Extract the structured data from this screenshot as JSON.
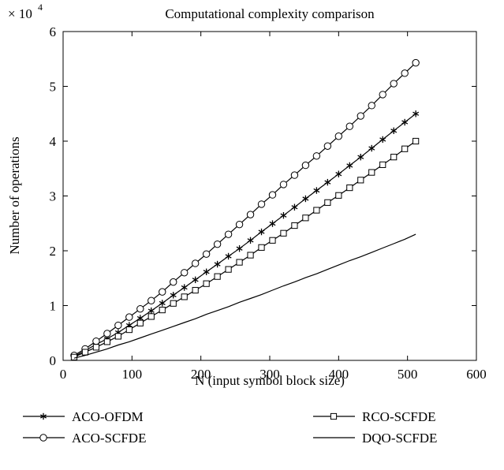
{
  "chart_data": {
    "type": "line",
    "title": "Computational complexity comparison",
    "xlabel": "N (input symbol block size)",
    "ylabel": "Number of operations",
    "y_multiplier": {
      "base": "× 10",
      "exponent": "4"
    },
    "xlim": [
      0,
      600
    ],
    "ylim": [
      0,
      60000
    ],
    "x_ticks": [
      0,
      100,
      200,
      300,
      400,
      500,
      600
    ],
    "y_ticks": [
      0,
      10000,
      20000,
      30000,
      40000,
      50000,
      60000
    ],
    "y_tick_labels": [
      "0",
      "1",
      "2",
      "3",
      "4",
      "5",
      "6"
    ],
    "x_tick_labels": [
      "0",
      "100",
      "200",
      "300",
      "400",
      "500",
      "600"
    ],
    "grid": false,
    "legend_placement": "bottom",
    "series": [
      {
        "name": "ACO-OFDM",
        "marker": "asterisk",
        "x": [
          16,
          32,
          48,
          64,
          80,
          96,
          112,
          128,
          144,
          160,
          176,
          192,
          208,
          224,
          240,
          256,
          272,
          288,
          304,
          320,
          336,
          352,
          368,
          384,
          400,
          416,
          432,
          448,
          464,
          480,
          496,
          512
        ],
        "y": [
          700,
          1800,
          2900,
          3950,
          5100,
          6400,
          7700,
          9050,
          10450,
          11900,
          13300,
          14700,
          16150,
          17550,
          19000,
          20400,
          21900,
          23450,
          24950,
          26450,
          27950,
          29500,
          31000,
          32500,
          34000,
          35550,
          37100,
          38700,
          40300,
          41900,
          43450,
          45000
        ]
      },
      {
        "name": "ACO-SCFDE",
        "marker": "circle",
        "x": [
          16,
          32,
          48,
          64,
          80,
          96,
          112,
          128,
          144,
          160,
          176,
          192,
          208,
          224,
          240,
          256,
          272,
          288,
          304,
          320,
          336,
          352,
          368,
          384,
          400,
          416,
          432,
          448,
          464,
          480,
          496,
          512
        ],
        "y": [
          900,
          2100,
          3500,
          4900,
          6400,
          7900,
          9400,
          10900,
          12500,
          14300,
          16000,
          17700,
          19400,
          21200,
          23000,
          24800,
          26600,
          28500,
          30200,
          32100,
          33800,
          35600,
          37300,
          39100,
          40900,
          42700,
          44600,
          46500,
          48500,
          50500,
          52400,
          54300
        ]
      },
      {
        "name": "RCO-SCFDE",
        "marker": "square",
        "x": [
          16,
          32,
          48,
          64,
          80,
          96,
          112,
          128,
          144,
          160,
          176,
          192,
          208,
          224,
          240,
          256,
          272,
          288,
          304,
          320,
          336,
          352,
          368,
          384,
          400,
          416,
          432,
          448,
          464,
          480,
          496,
          512
        ],
        "y": [
          600,
          1500,
          2400,
          3400,
          4400,
          5600,
          6800,
          8000,
          9200,
          10400,
          11600,
          12800,
          14000,
          15300,
          16600,
          17900,
          19200,
          20600,
          21900,
          23200,
          24600,
          26000,
          27400,
          28800,
          30100,
          31500,
          32900,
          34300,
          35700,
          37100,
          38600,
          40000
        ]
      },
      {
        "name": "DQO-SCFDE",
        "marker": "none",
        "x": [
          16,
          32,
          48,
          64,
          80,
          96,
          112,
          128,
          144,
          160,
          176,
          192,
          208,
          224,
          240,
          256,
          272,
          288,
          304,
          320,
          336,
          352,
          368,
          384,
          400,
          416,
          432,
          448,
          464,
          480,
          496,
          512
        ],
        "y": [
          400,
          900,
          1500,
          2100,
          2800,
          3400,
          4100,
          4800,
          5500,
          6200,
          6900,
          7600,
          8400,
          9100,
          9800,
          10600,
          11300,
          12000,
          12800,
          13600,
          14300,
          15100,
          15800,
          16600,
          17400,
          18200,
          18900,
          19700,
          20500,
          21300,
          22100,
          23000
        ]
      }
    ]
  }
}
